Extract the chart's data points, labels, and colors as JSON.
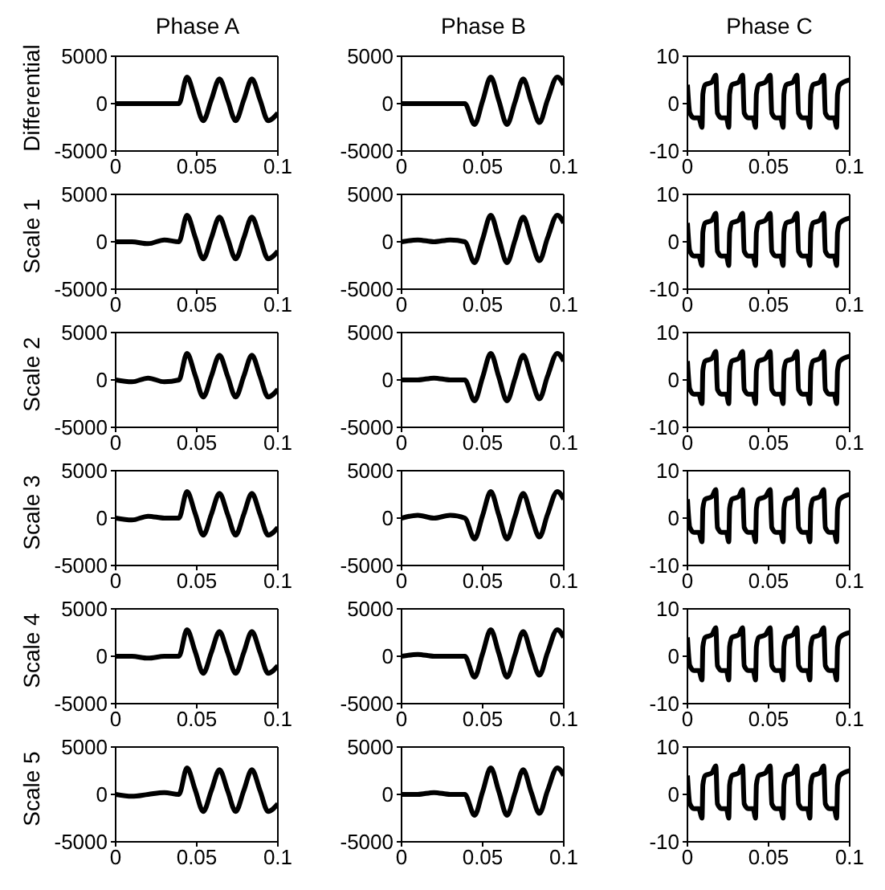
{
  "chart_data": [
    {
      "type": "line",
      "title": "Phase A",
      "ylabel": "Differential",
      "x": [
        0,
        0.01,
        0.02,
        0.03,
        0.039,
        0.044,
        0.049,
        0.054,
        0.059,
        0.064,
        0.069,
        0.074,
        0.079,
        0.084,
        0.089,
        0.094,
        0.1
      ],
      "values": [
        0,
        0,
        0,
        0,
        0,
        2800,
        500,
        -1800,
        400,
        2600,
        400,
        -1800,
        400,
        2600,
        400,
        -1800,
        -1000
      ],
      "color": "#000000",
      "xlim": [
        0,
        0.1
      ],
      "xticks": [
        0,
        0.05,
        0.1
      ],
      "ylim": [
        -5000,
        5000
      ],
      "yticks": [
        -5000,
        0,
        5000
      ]
    },
    {
      "type": "line",
      "title": "Phase B",
      "x": [
        0,
        0.01,
        0.02,
        0.03,
        0.039,
        0.045,
        0.05,
        0.055,
        0.06,
        0.065,
        0.07,
        0.075,
        0.08,
        0.085,
        0.09,
        0.096,
        0.1
      ],
      "values": [
        0,
        0,
        0,
        0,
        0,
        -2200,
        300,
        2800,
        300,
        -2200,
        200,
        2600,
        200,
        -2000,
        400,
        2800,
        2000
      ],
      "color": "#000000",
      "xlim": [
        0,
        0.1
      ],
      "xticks": [
        0,
        0.05,
        0.1
      ],
      "ylim": [
        -5000,
        5000
      ],
      "yticks": [
        -5000,
        0,
        5000
      ]
    },
    {
      "type": "line",
      "title": "Phase C",
      "x": [
        0,
        0.0015,
        0.004,
        0.007,
        0.009,
        0.0095,
        0.011,
        0.015,
        0.0175,
        0.0185,
        0.021,
        0.024,
        0.0255,
        0.026,
        0.0275,
        0.0315,
        0.034,
        0.035,
        0.0375,
        0.0405,
        0.042,
        0.0425,
        0.044,
        0.048,
        0.051,
        0.052,
        0.0545,
        0.0575,
        0.059,
        0.0595,
        0.061,
        0.065,
        0.0675,
        0.0685,
        0.071,
        0.074,
        0.0755,
        0.076,
        0.0775,
        0.0815,
        0.084,
        0.085,
        0.0875,
        0.0905,
        0.092,
        0.0925,
        0.094,
        0.1
      ],
      "values": [
        4,
        -2,
        -3,
        -3,
        -5,
        2,
        4,
        4.5,
        6,
        -2,
        -3,
        -3,
        -5,
        2,
        4,
        4.5,
        6,
        -2,
        -3,
        -3,
        -5,
        2,
        4,
        4.5,
        6,
        -2,
        -3,
        -3,
        -5,
        2,
        4,
        4.5,
        6,
        -2,
        -3,
        -3,
        -5,
        2,
        4,
        4.5,
        6,
        -2,
        -3,
        -3,
        -5,
        2,
        4,
        5
      ],
      "color": "#000000",
      "xlim": [
        0,
        0.1
      ],
      "xticks": [
        0,
        0.05,
        0.1
      ],
      "ylim": [
        -10,
        10
      ],
      "yticks": [
        -10,
        0,
        10
      ]
    },
    {
      "type": "line",
      "ylabel": "Scale 1",
      "x": [
        0,
        0.01,
        0.02,
        0.03,
        0.039,
        0.044,
        0.049,
        0.054,
        0.059,
        0.064,
        0.069,
        0.074,
        0.079,
        0.084,
        0.089,
        0.094,
        0.1
      ],
      "values": [
        0,
        0,
        -200,
        200,
        0,
        2800,
        500,
        -1800,
        400,
        2600,
        400,
        -1800,
        400,
        2600,
        400,
        -1800,
        -1000
      ],
      "color": "#000000",
      "xlim": [
        0,
        0.1
      ],
      "xticks": [
        0,
        0.05,
        0.1
      ],
      "ylim": [
        -5000,
        5000
      ],
      "yticks": [
        -5000,
        0,
        5000
      ]
    },
    {
      "type": "line",
      "x": [
        0,
        0.01,
        0.02,
        0.03,
        0.039,
        0.045,
        0.05,
        0.055,
        0.06,
        0.065,
        0.07,
        0.075,
        0.08,
        0.085,
        0.09,
        0.096,
        0.1
      ],
      "values": [
        0,
        200,
        0,
        200,
        0,
        -2200,
        300,
        2800,
        300,
        -2200,
        200,
        2600,
        200,
        -2000,
        400,
        2800,
        2000
      ],
      "color": "#000000",
      "xlim": [
        0,
        0.1
      ],
      "xticks": [
        0,
        0.05,
        0.1
      ],
      "ylim": [
        -5000,
        5000
      ],
      "yticks": [
        -5000,
        0,
        5000
      ]
    },
    {
      "type": "line",
      "x": [
        0,
        0.0015,
        0.004,
        0.007,
        0.009,
        0.0095,
        0.011,
        0.015,
        0.0175,
        0.0185,
        0.021,
        0.024,
        0.0255,
        0.026,
        0.0275,
        0.0315,
        0.034,
        0.035,
        0.0375,
        0.0405,
        0.042,
        0.0425,
        0.044,
        0.048,
        0.051,
        0.052,
        0.0545,
        0.0575,
        0.059,
        0.0595,
        0.061,
        0.065,
        0.0675,
        0.0685,
        0.071,
        0.074,
        0.0755,
        0.076,
        0.0775,
        0.0815,
        0.084,
        0.085,
        0.0875,
        0.0905,
        0.092,
        0.0925,
        0.094,
        0.1
      ],
      "values": [
        4,
        -2,
        -3,
        -3,
        -5,
        2,
        4,
        4.5,
        6,
        -2,
        -3,
        -3,
        -5,
        2,
        4,
        4.5,
        6,
        -2,
        -3,
        -3,
        -5,
        2,
        4,
        4.5,
        6,
        -2,
        -3,
        -3,
        -5,
        2,
        4,
        4.5,
        6,
        -2,
        -3,
        -3,
        -5,
        2,
        4,
        4.5,
        6,
        -2,
        -3,
        -3,
        -5,
        2,
        4,
        5
      ],
      "color": "#000000",
      "xlim": [
        0,
        0.1
      ],
      "xticks": [
        0,
        0.05,
        0.1
      ],
      "ylim": [
        -10,
        10
      ],
      "yticks": [
        -10,
        0,
        10
      ]
    },
    {
      "type": "line",
      "ylabel": "Scale 2",
      "x": [
        0,
        0.01,
        0.02,
        0.03,
        0.039,
        0.044,
        0.049,
        0.054,
        0.059,
        0.064,
        0.069,
        0.074,
        0.079,
        0.084,
        0.089,
        0.094,
        0.1
      ],
      "values": [
        0,
        -200,
        200,
        -200,
        0,
        2800,
        500,
        -1800,
        400,
        2600,
        400,
        -1800,
        400,
        2600,
        400,
        -1800,
        -1000
      ],
      "color": "#000000",
      "xlim": [
        0,
        0.1
      ],
      "xticks": [
        0,
        0.05,
        0.1
      ],
      "ylim": [
        -5000,
        5000
      ],
      "yticks": [
        -5000,
        0,
        5000
      ]
    },
    {
      "type": "line",
      "x": [
        0,
        0.01,
        0.02,
        0.03,
        0.039,
        0.045,
        0.05,
        0.055,
        0.06,
        0.065,
        0.07,
        0.075,
        0.08,
        0.085,
        0.09,
        0.096,
        0.1
      ],
      "values": [
        0,
        0,
        200,
        0,
        0,
        -2200,
        300,
        2800,
        300,
        -2200,
        200,
        2600,
        200,
        -2000,
        400,
        2800,
        2000
      ],
      "color": "#000000",
      "xlim": [
        0,
        0.1
      ],
      "xticks": [
        0,
        0.05,
        0.1
      ],
      "ylim": [
        -5000,
        5000
      ],
      "yticks": [
        -5000,
        0,
        5000
      ]
    },
    {
      "type": "line",
      "x": [
        0,
        0.0015,
        0.004,
        0.007,
        0.009,
        0.0095,
        0.011,
        0.015,
        0.0175,
        0.0185,
        0.021,
        0.024,
        0.0255,
        0.026,
        0.0275,
        0.0315,
        0.034,
        0.035,
        0.0375,
        0.0405,
        0.042,
        0.0425,
        0.044,
        0.048,
        0.051,
        0.052,
        0.0545,
        0.0575,
        0.059,
        0.0595,
        0.061,
        0.065,
        0.0675,
        0.0685,
        0.071,
        0.074,
        0.0755,
        0.076,
        0.0775,
        0.0815,
        0.084,
        0.085,
        0.0875,
        0.0905,
        0.092,
        0.0925,
        0.094,
        0.1
      ],
      "values": [
        4,
        -2,
        -3,
        -3,
        -5,
        2,
        4,
        4.5,
        6,
        -2,
        -3,
        -3,
        -5,
        2,
        4,
        4.5,
        6,
        -2,
        -3,
        -3,
        -5,
        2,
        4,
        4.5,
        6,
        -2,
        -3,
        -3,
        -5,
        2,
        4,
        4.5,
        6,
        -2,
        -3,
        -3,
        -5,
        2,
        4,
        4.5,
        6,
        -2,
        -3,
        -3,
        -5,
        2,
        4,
        5
      ],
      "color": "#000000",
      "xlim": [
        0,
        0.1
      ],
      "xticks": [
        0,
        0.05,
        0.1
      ],
      "ylim": [
        -10,
        10
      ],
      "yticks": [
        -10,
        0,
        10
      ]
    },
    {
      "type": "line",
      "ylabel": "Scale 3",
      "x": [
        0,
        0.01,
        0.02,
        0.03,
        0.039,
        0.044,
        0.049,
        0.054,
        0.059,
        0.064,
        0.069,
        0.074,
        0.079,
        0.084,
        0.089,
        0.094,
        0.1
      ],
      "values": [
        0,
        -200,
        200,
        0,
        0,
        2800,
        500,
        -1800,
        400,
        2600,
        400,
        -1800,
        400,
        2600,
        400,
        -1800,
        -1000
      ],
      "color": "#000000",
      "xlim": [
        0,
        0.1
      ],
      "xticks": [
        0,
        0.05,
        0.1
      ],
      "ylim": [
        -5000,
        5000
      ],
      "yticks": [
        -5000,
        0,
        5000
      ]
    },
    {
      "type": "line",
      "x": [
        0,
        0.01,
        0.02,
        0.03,
        0.039,
        0.045,
        0.05,
        0.055,
        0.06,
        0.065,
        0.07,
        0.075,
        0.08,
        0.085,
        0.09,
        0.096,
        0.1
      ],
      "values": [
        0,
        300,
        0,
        300,
        0,
        -2200,
        300,
        2800,
        300,
        -2200,
        200,
        2600,
        200,
        -2000,
        400,
        2800,
        2000
      ],
      "color": "#000000",
      "xlim": [
        0,
        0.1
      ],
      "xticks": [
        0,
        0.05,
        0.1
      ],
      "ylim": [
        -5000,
        5000
      ],
      "yticks": [
        -5000,
        0,
        5000
      ]
    },
    {
      "type": "line",
      "x": [
        0,
        0.0015,
        0.004,
        0.007,
        0.009,
        0.0095,
        0.011,
        0.015,
        0.0175,
        0.0185,
        0.021,
        0.024,
        0.0255,
        0.026,
        0.0275,
        0.0315,
        0.034,
        0.035,
        0.0375,
        0.0405,
        0.042,
        0.0425,
        0.044,
        0.048,
        0.051,
        0.052,
        0.0545,
        0.0575,
        0.059,
        0.0595,
        0.061,
        0.065,
        0.0675,
        0.0685,
        0.071,
        0.074,
        0.0755,
        0.076,
        0.0775,
        0.0815,
        0.084,
        0.085,
        0.0875,
        0.0905,
        0.092,
        0.0925,
        0.094,
        0.1
      ],
      "values": [
        4,
        -2,
        -3,
        -3,
        -5,
        2,
        4,
        4.5,
        6,
        -2,
        -3,
        -3,
        -5,
        2,
        4,
        4.5,
        6,
        -2,
        -3,
        -3,
        -5,
        2,
        4,
        4.5,
        6,
        -2,
        -3,
        -3,
        -5,
        2,
        4,
        4.5,
        6,
        -2,
        -3,
        -3,
        -5,
        2,
        4,
        4.5,
        6,
        -2,
        -3,
        -3,
        -5,
        2,
        4,
        5
      ],
      "color": "#000000",
      "xlim": [
        0,
        0.1
      ],
      "xticks": [
        0,
        0.05,
        0.1
      ],
      "ylim": [
        -10,
        10
      ],
      "yticks": [
        -10,
        0,
        10
      ]
    },
    {
      "type": "line",
      "ylabel": "Scale 4",
      "x": [
        0,
        0.01,
        0.02,
        0.03,
        0.039,
        0.044,
        0.049,
        0.054,
        0.059,
        0.064,
        0.069,
        0.074,
        0.079,
        0.084,
        0.089,
        0.094,
        0.1
      ],
      "values": [
        0,
        0,
        -200,
        0,
        0,
        2800,
        500,
        -1800,
        400,
        2600,
        400,
        -1800,
        400,
        2600,
        400,
        -1800,
        -1000
      ],
      "color": "#000000",
      "xlim": [
        0,
        0.1
      ],
      "xticks": [
        0,
        0.05,
        0.1
      ],
      "ylim": [
        -5000,
        5000
      ],
      "yticks": [
        -5000,
        0,
        5000
      ]
    },
    {
      "type": "line",
      "x": [
        0,
        0.01,
        0.02,
        0.03,
        0.039,
        0.045,
        0.05,
        0.055,
        0.06,
        0.065,
        0.07,
        0.075,
        0.08,
        0.085,
        0.09,
        0.096,
        0.1
      ],
      "values": [
        0,
        200,
        0,
        0,
        0,
        -2200,
        300,
        2800,
        300,
        -2200,
        200,
        2600,
        200,
        -2000,
        400,
        2800,
        2000
      ],
      "color": "#000000",
      "xlim": [
        0,
        0.1
      ],
      "xticks": [
        0,
        0.05,
        0.1
      ],
      "ylim": [
        -5000,
        5000
      ],
      "yticks": [
        -5000,
        0,
        5000
      ]
    },
    {
      "type": "line",
      "x": [
        0,
        0.0015,
        0.004,
        0.007,
        0.009,
        0.0095,
        0.011,
        0.015,
        0.0175,
        0.0185,
        0.021,
        0.024,
        0.0255,
        0.026,
        0.0275,
        0.0315,
        0.034,
        0.035,
        0.0375,
        0.0405,
        0.042,
        0.0425,
        0.044,
        0.048,
        0.051,
        0.052,
        0.0545,
        0.0575,
        0.059,
        0.0595,
        0.061,
        0.065,
        0.0675,
        0.0685,
        0.071,
        0.074,
        0.0755,
        0.076,
        0.0775,
        0.0815,
        0.084,
        0.085,
        0.0875,
        0.0905,
        0.092,
        0.0925,
        0.094,
        0.1
      ],
      "values": [
        4,
        -2,
        -3,
        -3,
        -5,
        2,
        4,
        4.5,
        6,
        -2,
        -3,
        -3,
        -5,
        2,
        4,
        4.5,
        6,
        -2,
        -3,
        -3,
        -5,
        2,
        4,
        4.5,
        6,
        -2,
        -3,
        -3,
        -5,
        2,
        4,
        4.5,
        6,
        -2,
        -3,
        -3,
        -5,
        2,
        4,
        4.5,
        6,
        -2,
        -3,
        -3,
        -5,
        2,
        4,
        5
      ],
      "color": "#000000",
      "xlim": [
        0,
        0.1
      ],
      "xticks": [
        0,
        0.05,
        0.1
      ],
      "ylim": [
        -10,
        10
      ],
      "yticks": [
        -10,
        0,
        10
      ]
    },
    {
      "type": "line",
      "ylabel": "Scale 5",
      "x": [
        0,
        0.01,
        0.02,
        0.03,
        0.039,
        0.044,
        0.049,
        0.054,
        0.059,
        0.064,
        0.069,
        0.074,
        0.079,
        0.084,
        0.089,
        0.094,
        0.1
      ],
      "values": [
        0,
        -200,
        0,
        200,
        0,
        2800,
        500,
        -1800,
        400,
        2600,
        400,
        -1800,
        400,
        2600,
        400,
        -1800,
        -1000
      ],
      "color": "#000000",
      "xlim": [
        0,
        0.1
      ],
      "xticks": [
        0,
        0.05,
        0.1
      ],
      "ylim": [
        -5000,
        5000
      ],
      "yticks": [
        -5000,
        0,
        5000
      ]
    },
    {
      "type": "line",
      "x": [
        0,
        0.01,
        0.02,
        0.03,
        0.039,
        0.045,
        0.05,
        0.055,
        0.06,
        0.065,
        0.07,
        0.075,
        0.08,
        0.085,
        0.09,
        0.096,
        0.1
      ],
      "values": [
        0,
        0,
        200,
        0,
        0,
        -2200,
        300,
        2800,
        300,
        -2200,
        200,
        2600,
        200,
        -2000,
        400,
        2800,
        2000
      ],
      "color": "#000000",
      "xlim": [
        0,
        0.1
      ],
      "xticks": [
        0,
        0.05,
        0.1
      ],
      "ylim": [
        -5000,
        5000
      ],
      "yticks": [
        -5000,
        0,
        5000
      ]
    },
    {
      "type": "line",
      "x": [
        0,
        0.0015,
        0.004,
        0.007,
        0.009,
        0.0095,
        0.011,
        0.015,
        0.0175,
        0.0185,
        0.021,
        0.024,
        0.0255,
        0.026,
        0.0275,
        0.0315,
        0.034,
        0.035,
        0.0375,
        0.0405,
        0.042,
        0.0425,
        0.044,
        0.048,
        0.051,
        0.052,
        0.0545,
        0.0575,
        0.059,
        0.0595,
        0.061,
        0.065,
        0.0675,
        0.0685,
        0.071,
        0.074,
        0.0755,
        0.076,
        0.0775,
        0.0815,
        0.084,
        0.085,
        0.0875,
        0.0905,
        0.092,
        0.0925,
        0.094,
        0.1
      ],
      "values": [
        4,
        -2,
        -3,
        -3,
        -5,
        2,
        4,
        4.5,
        6,
        -2,
        -3,
        -3,
        -5,
        2,
        4,
        4.5,
        6,
        -2,
        -3,
        -3,
        -5,
        2,
        4,
        4.5,
        6,
        -2,
        -3,
        -3,
        -5,
        2,
        4,
        4.5,
        6,
        -2,
        -3,
        -3,
        -5,
        2,
        4,
        4.5,
        6,
        -2,
        -3,
        -3,
        -5,
        2,
        4,
        5
      ],
      "color": "#000000",
      "xlim": [
        0,
        0.1
      ],
      "xticks": [
        0,
        0.05,
        0.1
      ],
      "ylim": [
        -10,
        10
      ],
      "yticks": [
        -10,
        0,
        10
      ]
    }
  ]
}
